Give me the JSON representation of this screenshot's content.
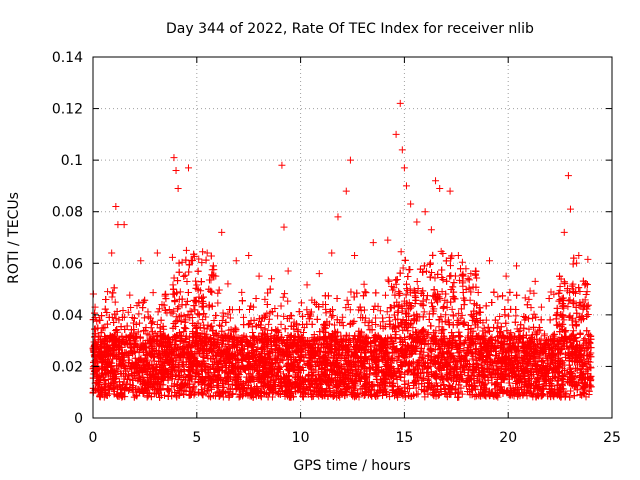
{
  "chart_data": {
    "type": "scatter",
    "title": "Day 344 of 2022, Rate Of TEC Index for receiver nlib",
    "xlabel": "GPS time / hours",
    "ylabel": "ROTI / TECUs",
    "xlim": [
      0,
      25
    ],
    "ylim": [
      0,
      0.14
    ],
    "xticks": [
      0,
      5,
      10,
      15,
      20,
      25
    ],
    "yticks": [
      0,
      0.02,
      0.04,
      0.06,
      0.08,
      0.1,
      0.12,
      0.14
    ],
    "xtick_labels": [
      "0",
      "5",
      "10",
      "15",
      "20",
      "25"
    ],
    "ytick_labels": [
      "0",
      "0.02",
      "0.04",
      "0.06",
      "0.08",
      "0.1",
      "0.12",
      "0.14"
    ],
    "grid": true,
    "marker": "+",
    "series_color": "#ff0000",
    "series": [
      {
        "x": [
          0.1,
          0.3,
          0.5,
          0.9,
          1.1,
          1.2,
          1.5,
          2.3,
          3.1,
          3.9,
          4.0,
          4.1,
          4.5,
          4.6,
          5.5,
          6.2,
          6.9,
          7.5,
          8.6,
          9.1,
          9.2,
          9.4,
          10.9,
          11.5,
          11.8,
          12.2,
          12.4,
          12.6,
          13.5,
          14.6,
          14.8,
          14.9,
          15.0,
          15.1,
          15.3,
          15.6,
          16.0,
          16.5,
          16.7,
          17.2,
          17.6,
          18.2,
          19.1,
          19.9,
          20.4,
          21.0,
          21.6,
          22.2,
          22.7,
          22.9,
          23.0,
          23.4,
          23.8,
          0.8,
          2.8,
          5.1,
          8.0,
          10.3,
          13.1,
          18.8,
          20.8,
          23.6,
          1.7,
          3.5,
          6.5,
          9.8,
          11.2,
          14.2,
          16.3,
          19.5,
          21.3,
          22.5
        ],
        "y": [
          0.043,
          0.038,
          0.035,
          0.064,
          0.082,
          0.075,
          0.075,
          0.061,
          0.064,
          0.101,
          0.096,
          0.089,
          0.065,
          0.097,
          0.064,
          0.072,
          0.061,
          0.063,
          0.054,
          0.098,
          0.074,
          0.057,
          0.056,
          0.064,
          0.078,
          0.088,
          0.1,
          0.063,
          0.068,
          0.11,
          0.122,
          0.104,
          0.097,
          0.09,
          0.083,
          0.076,
          0.08,
          0.092,
          0.089,
          0.088,
          0.063,
          0.056,
          0.061,
          0.055,
          0.059,
          0.046,
          0.043,
          0.048,
          0.072,
          0.094,
          0.081,
          0.063,
          0.049,
          0.027,
          0.035,
          0.045,
          0.055,
          0.042,
          0.037,
          0.031,
          0.038,
          0.045,
          0.041,
          0.048,
          0.052,
          0.036,
          0.044,
          0.069,
          0.073,
          0.047,
          0.053,
          0.051
        ]
      }
    ]
  }
}
